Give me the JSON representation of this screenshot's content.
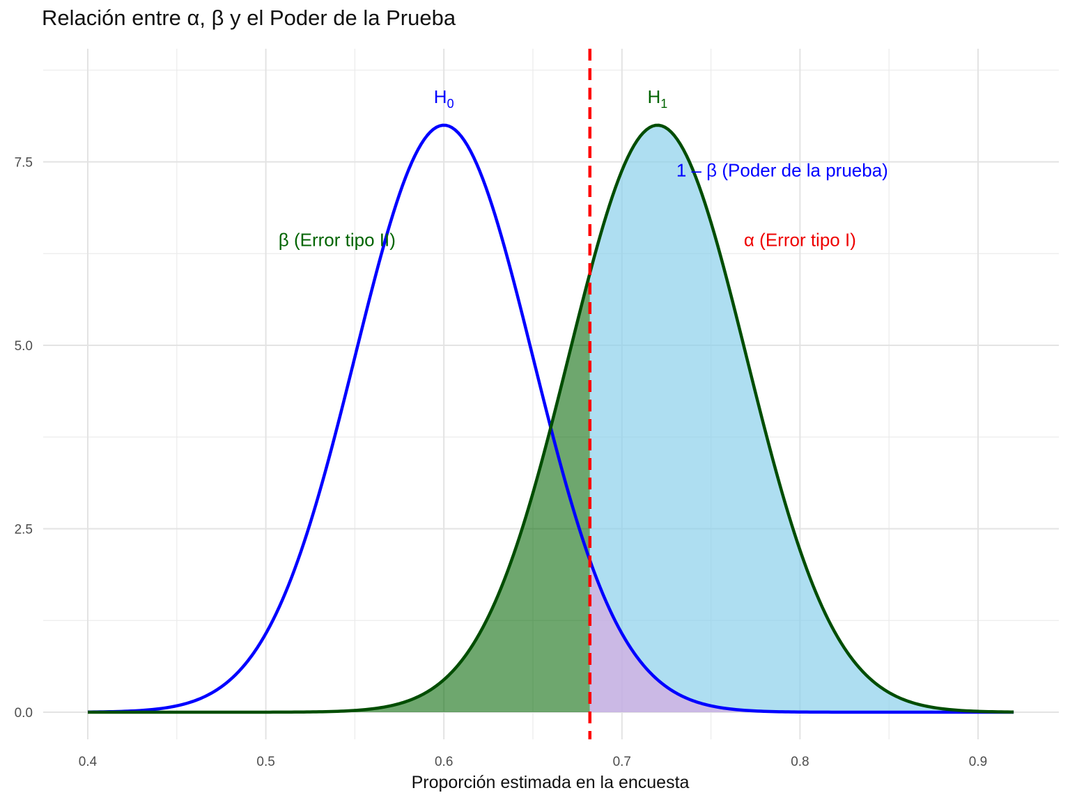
{
  "chart_data": {
    "type": "area",
    "title": "Relación entre α, β y el Poder de la Prueba",
    "xlabel": "Proporción estimada en la encuesta",
    "ylabel": "",
    "xlim": [
      0.4,
      0.92
    ],
    "ylim": [
      0,
      8.5
    ],
    "x_ticks": [
      0.4,
      0.5,
      0.6,
      0.7,
      0.8,
      0.9
    ],
    "x_tick_labels": [
      "0.4",
      "0.5",
      "0.6",
      "0.7",
      "0.8",
      "0.9"
    ],
    "y_ticks": [
      0,
      2.5,
      5,
      7.5
    ],
    "y_tick_labels": [
      "0.0",
      "2.5",
      "5.0",
      "7.5"
    ],
    "grid": true,
    "critical_value": 0.682,
    "series": [
      {
        "name": "H0",
        "color": "#0000ff",
        "x": [
          0.4,
          0.42,
          0.44,
          0.46,
          0.48,
          0.5,
          0.52,
          0.54,
          0.56,
          0.58,
          0.6,
          0.62,
          0.64,
          0.66,
          0.68,
          0.7,
          0.72,
          0.74,
          0.76,
          0.78,
          0.8,
          0.82,
          0.84,
          0.86,
          0.88,
          0.9,
          0.92
        ],
        "y": [
          0.003,
          0.014,
          0.054,
          0.175,
          0.483,
          1.13,
          2.24,
          3.77,
          5.37,
          6.49,
          8.0,
          7.53,
          5.37,
          3.77,
          2.24,
          1.13,
          0.483,
          0.175,
          0.054,
          0.014,
          0.003,
          0.0005,
          0.0,
          0.0,
          0.0,
          0.0,
          0.0
        ]
      },
      {
        "name": "H1",
        "color": "#006400",
        "x": [
          0.4,
          0.42,
          0.44,
          0.46,
          0.48,
          0.5,
          0.52,
          0.54,
          0.56,
          0.58,
          0.6,
          0.62,
          0.64,
          0.66,
          0.68,
          0.7,
          0.72,
          0.74,
          0.76,
          0.78,
          0.8,
          0.82,
          0.84,
          0.86,
          0.88,
          0.9,
          0.92
        ],
        "y": [
          0.0,
          0.0,
          0.0,
          0.0,
          0.0,
          0.0,
          0.0003,
          0.003,
          0.014,
          0.054,
          0.483,
          1.13,
          2.24,
          3.77,
          5.37,
          7.53,
          8.0,
          7.53,
          6.49,
          5.37,
          3.77,
          2.24,
          1.13,
          0.483,
          0.175,
          0.054,
          0.014
        ]
      }
    ],
    "regions": [
      {
        "name": "β (Error tipo II)",
        "color": "#006400",
        "range": [
          0.4,
          0.682
        ],
        "under": "H1"
      },
      {
        "name": "1 – β (Poder de la prueba)",
        "color": "#87ceeb",
        "range": [
          0.682,
          0.92
        ],
        "under": "H1"
      },
      {
        "name": "α (Error tipo I)",
        "color": "#dda0dd",
        "range": [
          0.682,
          0.92
        ],
        "under": "H0"
      }
    ],
    "annotations": [
      {
        "id": "h0",
        "text": "H",
        "sub": "0",
        "color": "#0000ff",
        "x": 0.6,
        "y": 8.3
      },
      {
        "id": "h1",
        "text": "H",
        "sub": "1",
        "color": "#006400",
        "x": 0.72,
        "y": 8.3
      },
      {
        "id": "power",
        "text": "1 – β (Poder de la prueba)",
        "color": "#0000ff",
        "x": 0.79,
        "y": 7.3
      },
      {
        "id": "beta",
        "text": "β (Error tipo II)",
        "color": "#006400",
        "x": 0.54,
        "y": 6.35
      },
      {
        "id": "alpha",
        "text": "α (Error tipo I)",
        "color": "#ee0000",
        "x": 0.8,
        "y": 6.35
      }
    ]
  }
}
